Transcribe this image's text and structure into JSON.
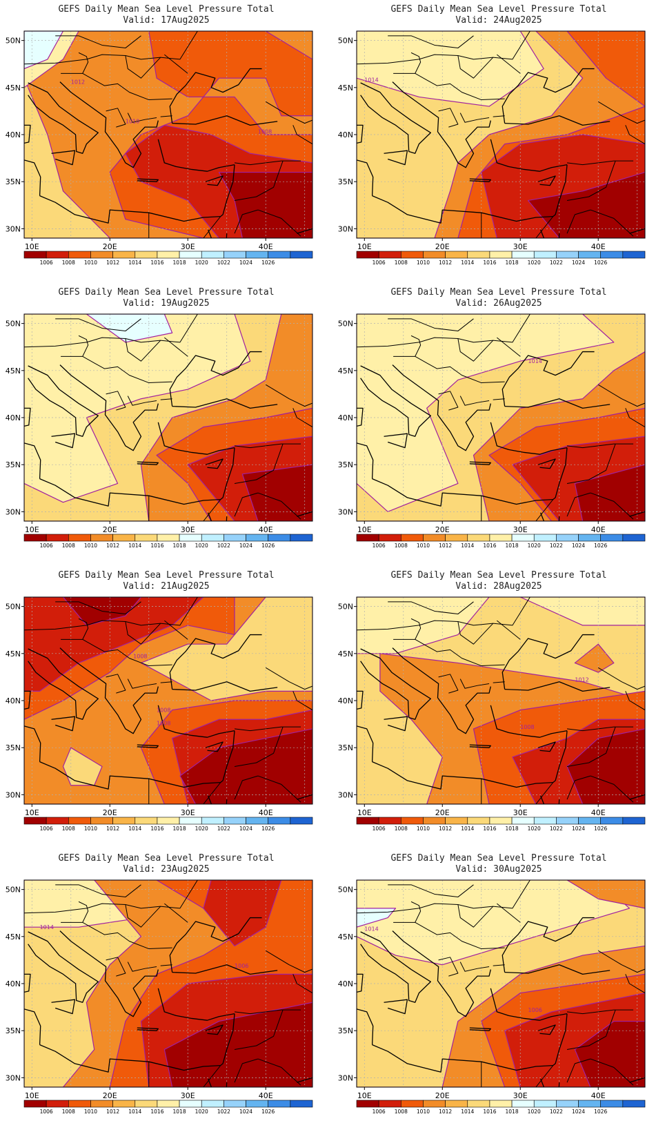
{
  "panels": [
    {
      "title": "GEFS Daily Mean Sea Level Pressure Total",
      "valid": "Valid: 17Aug2025",
      "scenario": "a",
      "isobar_labels": [
        "1012",
        "1010",
        "1008"
      ]
    },
    {
      "title": "GEFS Daily Mean Sea Level Pressure Total",
      "valid": "Valid: 24Aug2025",
      "scenario": "b",
      "isobar_labels": [
        "1014"
      ]
    },
    {
      "title": "GEFS Daily Mean Sea Level Pressure Total",
      "valid": "Valid: 19Aug2025",
      "scenario": "c",
      "isobar_labels": []
    },
    {
      "title": "GEFS Daily Mean Sea Level Pressure Total",
      "valid": "Valid: 26Aug2025",
      "scenario": "d",
      "isobar_labels": [
        "1014"
      ]
    },
    {
      "title": "GEFS Daily Mean Sea Level Pressure Total",
      "valid": "Valid: 21Aug2025",
      "scenario": "e",
      "isobar_labels": [
        "1008",
        "1008",
        "1008"
      ]
    },
    {
      "title": "GEFS Daily Mean Sea Level Pressure Total",
      "valid": "Valid: 28Aug2025",
      "scenario": "f",
      "isobar_labels": [
        "1012",
        "1008"
      ]
    },
    {
      "title": "GEFS Daily Mean Sea Level Pressure Total",
      "valid": "Valid: 23Aug2025",
      "scenario": "g",
      "isobar_labels": [
        "1014",
        "1006"
      ]
    },
    {
      "title": "GEFS Daily Mean Sea Level Pressure Total",
      "valid": "Valid: 30Aug2025",
      "scenario": "h",
      "isobar_labels": [
        "1014",
        "1006"
      ]
    }
  ],
  "lat_labels": [
    "50N",
    "45N",
    "40N",
    "35N",
    "30N"
  ],
  "lon_labels": [
    "10E",
    "20E",
    "30E",
    "40E"
  ],
  "colorbar": {
    "labels": [
      "1006",
      "1008",
      "1010",
      "1012",
      "1014",
      "1016",
      "1018",
      "1020",
      "1022",
      "1024",
      "1026"
    ],
    "colors": [
      "#a10000",
      "#d21e0a",
      "#f05a0a",
      "#f28c28",
      "#f9b448",
      "#fbd979",
      "#fff0a8",
      "#e6ffff",
      "#c0f0ff",
      "#96d2fa",
      "#64b4f0",
      "#3c8ce6",
      "#1e64d2"
    ]
  },
  "palette": {
    "p1005": "#a10000",
    "p1007": "#d21e0a",
    "p1009": "#f05a0a",
    "p1011": "#f28c28",
    "p1013": "#fbd979",
    "p1015": "#fff0a8",
    "p1017": "#e6ffff",
    "isobar": "#a020a0",
    "coast": "#000000",
    "grid": "#b0b0b0"
  }
}
